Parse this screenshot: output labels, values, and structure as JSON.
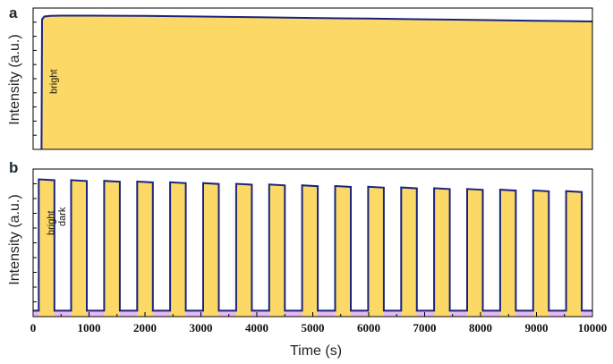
{
  "chart_data": [
    {
      "panel": "a",
      "type": "area",
      "ylabel": "Intensity (a.u.)",
      "xlim": [
        0,
        10000
      ],
      "ylim": [
        0,
        1.0
      ],
      "annotations": [
        {
          "text": "bright"
        }
      ],
      "series": [
        {
          "fill": "#fcd966",
          "line": "#1a237e",
          "x": [
            150,
            160,
            200,
            300,
            500,
            1000,
            2000,
            3000,
            4000,
            5000,
            6000,
            7000,
            8000,
            9000,
            10000
          ],
          "y": [
            0,
            0.92,
            0.94,
            0.945,
            0.946,
            0.946,
            0.944,
            0.94,
            0.935,
            0.93,
            0.925,
            0.92,
            0.915,
            0.91,
            0.905
          ]
        }
      ]
    },
    {
      "panel": "b",
      "type": "area",
      "ylabel": "Intensity (a.u.)",
      "xlabel": "Time (s)",
      "xlim": [
        0,
        10000
      ],
      "ylim": [
        0,
        1.0
      ],
      "xticks": [
        "0",
        "1000",
        "2000",
        "3000",
        "4000",
        "5000",
        "6000",
        "7000",
        "8000",
        "9000",
        "10000"
      ],
      "annotations": [
        {
          "text": "bright"
        },
        {
          "text": "dark"
        }
      ],
      "on_level": 0.93,
      "on_decay": 0.08,
      "dark_level": 0.04,
      "pulses": [
        [
          100,
          380
        ],
        [
          680,
          960
        ],
        [
          1270,
          1550
        ],
        [
          1860,
          2140
        ],
        [
          2450,
          2730
        ],
        [
          3040,
          3320
        ],
        [
          3630,
          3910
        ],
        [
          4220,
          4500
        ],
        [
          4810,
          5090
        ],
        [
          5400,
          5680
        ],
        [
          5990,
          6270
        ],
        [
          6580,
          6860
        ],
        [
          7170,
          7450
        ],
        [
          7760,
          8040
        ],
        [
          8350,
          8630
        ],
        [
          8940,
          9220
        ],
        [
          9530,
          9810
        ]
      ],
      "fill": "#fcd966",
      "line": "#1a237e",
      "dark_fill": "#e6b8f0"
    }
  ],
  "panels": {
    "a_label": "a",
    "b_label": "b"
  }
}
